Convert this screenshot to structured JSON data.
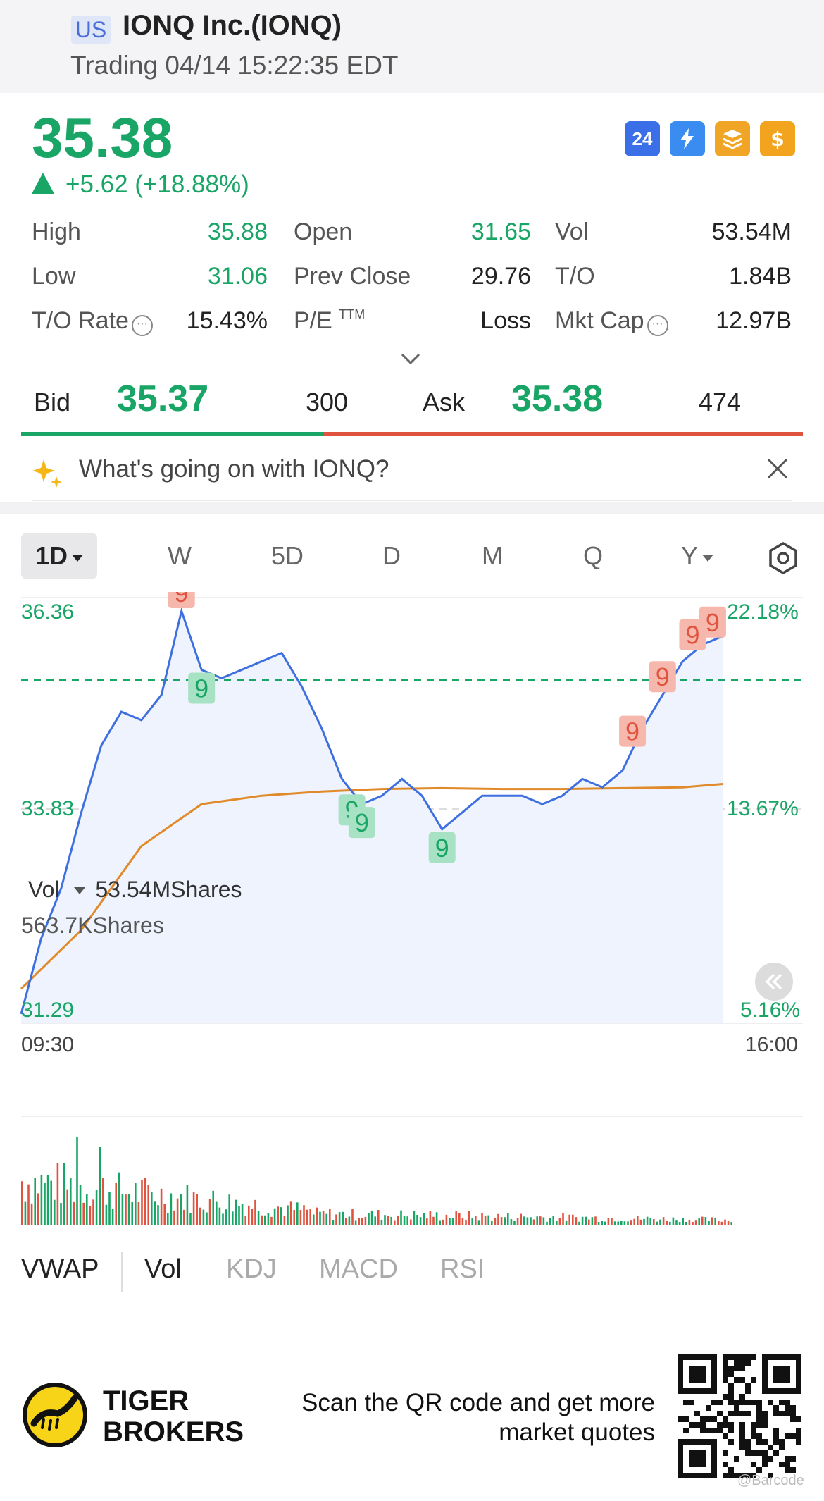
{
  "header": {
    "market": "US",
    "title": "IONQ Inc.(IONQ)",
    "status": "Trading 04/14 15:22:35 EDT"
  },
  "quote": {
    "price": "35.38",
    "change": "+5.62 (+18.88%)",
    "badges": [
      "24",
      "lightning-icon",
      "stack-icon",
      "dollar-icon"
    ],
    "stats": {
      "high_label": "High",
      "high": "35.88",
      "open_label": "Open",
      "open": "31.65",
      "vol_label": "Vol",
      "vol": "53.54M",
      "low_label": "Low",
      "low": "31.06",
      "prev_label": "Prev Close",
      "prev": "29.76",
      "to_label": "T/O",
      "to": "1.84B",
      "torate_label": "T/O Rate",
      "torate": "15.43%",
      "pe_label": "P/E",
      "pe_sup": "TTM",
      "pe": "Loss",
      "mcap_label": "Mkt Cap",
      "mcap": "12.97B"
    },
    "bid_label": "Bid",
    "bid": "35.37",
    "bid_size": "300",
    "ask_label": "Ask",
    "ask": "35.38",
    "ask_size": "474",
    "bid_share": 0.388
  },
  "ai_prompt": "What's going on with IONQ?",
  "chart": {
    "tabs": [
      "1D",
      "W",
      "5D",
      "D",
      "M",
      "Q",
      "Y"
    ],
    "active_tab": "1D",
    "y_left_top": "36.36",
    "y_left_mid": "33.83",
    "y_left_bottom": "31.29",
    "y_right_top": "22.18%",
    "y_right_mid": "13.67%",
    "y_right_bottom": "5.16%",
    "x_start": "09:30",
    "x_end": "16:00",
    "marker_label": "9",
    "vol_label": "Vol",
    "vol_total": "53.54MShares",
    "vol_max": "563.7KShares",
    "indicators": [
      "VWAP",
      "Vol",
      "KDJ",
      "MACD",
      "RSI"
    ],
    "active_indicators": [
      "Vol"
    ],
    "colors": {
      "up": "#e0533f",
      "down": "#19a566",
      "price_line": "#3e6fe0",
      "avg_line": "#e08a2a"
    }
  },
  "chart_data": {
    "type": "line",
    "x_range": [
      "09:30",
      "16:00"
    ],
    "ylim": [
      31.29,
      36.36
    ],
    "series": [
      {
        "x": [
          "09:30",
          "09:40",
          "09:50",
          "10:00",
          "10:10",
          "10:20",
          "10:30",
          "10:40",
          "10:50",
          "11:00",
          "11:10",
          "11:20",
          "11:30",
          "11:40",
          "11:50",
          "12:00",
          "12:10",
          "12:20",
          "12:30",
          "12:40",
          "12:50",
          "13:00",
          "13:10",
          "13:20",
          "13:30",
          "13:40",
          "13:50",
          "14:00",
          "14:10",
          "14:20",
          "14:30",
          "14:40",
          "14:50",
          "15:00",
          "15:10",
          "15:20"
        ],
        "values": [
          31.4,
          32.3,
          32.9,
          33.8,
          34.6,
          35.0,
          34.9,
          35.2,
          36.2,
          35.5,
          35.4,
          35.5,
          35.6,
          35.7,
          35.3,
          34.8,
          34.2,
          33.9,
          34.0,
          34.2,
          34.0,
          33.6,
          33.8,
          34.0,
          34.0,
          34.0,
          33.9,
          34.0,
          34.2,
          34.1,
          34.3,
          34.8,
          35.2,
          35.6,
          35.8,
          35.9
        ]
      },
      {
        "x": [
          "09:30",
          "10:00",
          "10:30",
          "11:00",
          "11:30",
          "12:00",
          "12:30",
          "13:00",
          "13:30",
          "14:00",
          "14:30",
          "15:00",
          "15:20"
        ],
        "values": [
          31.7,
          32.4,
          33.4,
          33.9,
          34.0,
          34.05,
          34.08,
          34.09,
          34.08,
          34.08,
          34.09,
          34.1,
          34.14
        ]
      }
    ],
    "markers": [
      {
        "x": "10:50",
        "label": "9",
        "kind": "up"
      },
      {
        "x": "11:00",
        "label": "9",
        "kind": "down"
      },
      {
        "x": "12:15",
        "label": "9",
        "kind": "down"
      },
      {
        "x": "12:20",
        "label": "9",
        "kind": "down"
      },
      {
        "x": "13:00",
        "label": "9",
        "kind": "down"
      },
      {
        "x": "14:35",
        "label": "9",
        "kind": "up"
      },
      {
        "x": "14:50",
        "label": "9",
        "kind": "up"
      },
      {
        "x": "15:05",
        "label": "9",
        "kind": "up"
      },
      {
        "x": "15:15",
        "label": "9",
        "kind": "up"
      }
    ],
    "reference_line": 35.38
  },
  "footer": {
    "brand_line1": "TIGER",
    "brand_line2": "BROKERS",
    "scan_line1": "Scan the QR code and get more",
    "scan_line2": "market quotes",
    "barcode_tag": "@Barcode"
  }
}
